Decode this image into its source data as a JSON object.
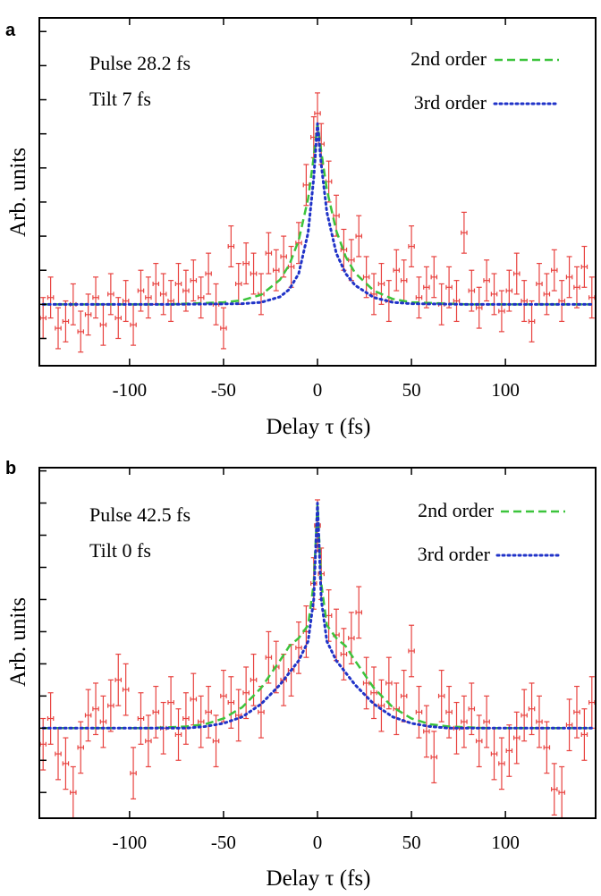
{
  "chart_data": [
    {
      "panel": "a",
      "type": "scatter",
      "annotation": [
        "Pulse 28.2 fs",
        "Tilt 7 fs"
      ],
      "xlabel": "Delay τ (fs)",
      "ylabel": "Arb. units",
      "xlim": [
        -148,
        148
      ],
      "ylim": [
        -0.9,
        4.2
      ],
      "xticks": [
        -100,
        -50,
        0,
        50,
        100
      ],
      "yticks": [
        -0.5,
        0,
        0.5,
        1,
        1.5,
        2,
        2.5,
        3,
        3.5,
        4
      ],
      "grid": false,
      "legend_position": "top-right",
      "colors": {
        "data": "#e8423f",
        "second_order": "#3cc43c",
        "third_order": "#2033c8"
      },
      "series": [
        {
          "name": "data",
          "style": "points-with-xy-errorbars",
          "x": [
            -146,
            -142,
            -138,
            -134,
            -130,
            -126,
            -122,
            -118,
            -114,
            -110,
            -106,
            -102,
            -98,
            -94,
            -90,
            -86,
            -82,
            -78,
            -74,
            -70,
            -66,
            -62,
            -58,
            -54,
            -50,
            -46,
            -42,
            -38,
            -34,
            -30,
            -26,
            -22,
            -18,
            -14,
            -10,
            -6,
            -2,
            0,
            2,
            6,
            10,
            14,
            18,
            22,
            26,
            30,
            34,
            38,
            42,
            46,
            50,
            54,
            58,
            62,
            66,
            70,
            74,
            78,
            82,
            86,
            90,
            94,
            98,
            102,
            106,
            110,
            114,
            118,
            122,
            126,
            130,
            134,
            138,
            142,
            146
          ],
          "y": [
            -0.2,
            0.1,
            -0.35,
            -0.25,
            0.0,
            -0.4,
            -0.15,
            0.1,
            -0.3,
            0.15,
            -0.2,
            0.05,
            -0.3,
            0.2,
            0.1,
            0.3,
            0.15,
            0.05,
            0.3,
            0.2,
            0.35,
            0.1,
            0.45,
            0.0,
            -0.35,
            0.85,
            0.3,
            0.6,
            0.45,
            0.15,
            0.75,
            0.5,
            0.7,
            0.55,
            0.9,
            1.75,
            2.45,
            2.8,
            2.35,
            1.8,
            1.3,
            0.8,
            0.65,
            1.0,
            0.4,
            0.15,
            0.3,
            0.05,
            0.5,
            0.35,
            0.85,
            0.1,
            0.25,
            0.4,
            0.0,
            0.25,
            0.05,
            1.05,
            0.2,
            -0.05,
            0.35,
            0.15,
            -0.1,
            0.2,
            0.45,
            0.05,
            -0.25,
            0.3,
            0.15,
            0.5,
            0.05,
            0.4,
            0.25,
            0.55,
            0.1
          ],
          "y_error": 0.3,
          "x_error": 1.5
        },
        {
          "name": "2nd order",
          "style": "dashed-line",
          "x": [
            -146,
            -80,
            -50,
            -40,
            -30,
            -20,
            -15,
            -10,
            -5,
            -2,
            0,
            2,
            5,
            10,
            15,
            20,
            30,
            40,
            50,
            80,
            146
          ],
          "y": [
            0.0,
            0.0,
            0.03,
            0.06,
            0.14,
            0.36,
            0.58,
            0.94,
            1.55,
            2.16,
            2.65,
            2.24,
            1.68,
            1.08,
            0.7,
            0.46,
            0.2,
            0.08,
            0.03,
            0.0,
            0.0
          ]
        },
        {
          "name": "3rd order",
          "style": "dotted-line",
          "x": [
            -146,
            -80,
            -40,
            -30,
            -20,
            -15,
            -10,
            -5,
            -2,
            0,
            2,
            5,
            10,
            15,
            20,
            30,
            40,
            50,
            80,
            146
          ],
          "y": [
            0.0,
            0.0,
            0.01,
            0.03,
            0.11,
            0.22,
            0.45,
            1.05,
            1.85,
            2.65,
            2.05,
            1.35,
            0.75,
            0.45,
            0.28,
            0.1,
            0.03,
            0.01,
            0.0,
            0.0
          ]
        }
      ]
    },
    {
      "panel": "b",
      "type": "scatter",
      "annotation": [
        "Pulse 42.5 fs",
        "Tilt 0 fs"
      ],
      "xlabel": "Delay τ (fs)",
      "ylabel": "Arb. units",
      "xlim": [
        -148,
        148
      ],
      "ylim": [
        -2.8,
        8.1
      ],
      "xticks": [
        -100,
        -50,
        0,
        50,
        100
      ],
      "yticks": [
        -2,
        -1,
        0,
        1,
        2,
        3,
        4,
        5,
        6,
        7,
        8
      ],
      "grid": false,
      "legend_position": "top-right",
      "colors": {
        "data": "#e8423f",
        "second_order": "#3cc43c",
        "third_order": "#2033c8"
      },
      "series": [
        {
          "name": "data",
          "style": "points-with-xy-errorbars",
          "x": [
            -146,
            -142,
            -138,
            -134,
            -130,
            -126,
            -122,
            -118,
            -114,
            -110,
            -106,
            -102,
            -98,
            -94,
            -90,
            -86,
            -82,
            -78,
            -74,
            -70,
            -66,
            -62,
            -58,
            -54,
            -50,
            -46,
            -42,
            -38,
            -34,
            -30,
            -26,
            -22,
            -18,
            -14,
            -10,
            -6,
            -2,
            0,
            2,
            6,
            10,
            14,
            18,
            22,
            26,
            30,
            34,
            38,
            42,
            46,
            50,
            54,
            58,
            62,
            66,
            70,
            74,
            78,
            82,
            86,
            90,
            94,
            98,
            102,
            106,
            110,
            114,
            118,
            122,
            126,
            130,
            134,
            138,
            142,
            146
          ],
          "y": [
            -0.5,
            0.3,
            -0.8,
            -1.1,
            -2.0,
            -0.6,
            0.4,
            0.6,
            0.2,
            0.7,
            1.5,
            1.2,
            -1.4,
            0.3,
            -0.4,
            0.5,
            0.0,
            0.8,
            -0.2,
            0.3,
            0.9,
            0.2,
            0.5,
            -0.4,
            1.0,
            0.8,
            0.4,
            1.1,
            1.5,
            0.5,
            2.2,
            1.9,
            1.5,
            1.8,
            2.5,
            3.0,
            4.5,
            6.3,
            4.8,
            3.5,
            2.9,
            2.3,
            2.8,
            3.6,
            1.4,
            1.1,
            0.7,
            1.4,
            0.6,
            1.0,
            2.4,
            0.5,
            -0.1,
            -0.9,
            1.0,
            0.5,
            0.0,
            0.2,
            0.6,
            -0.4,
            0.2,
            -0.8,
            -1.1,
            -0.7,
            -0.3,
            0.4,
            0.6,
            0.2,
            -0.6,
            -1.9,
            -2.0,
            0.1,
            0.5,
            -0.2,
            0.8
          ],
          "y_error": 0.8,
          "x_error": 1.5
        },
        {
          "name": "2nd order",
          "style": "dashed-line",
          "x": [
            -146,
            -90,
            -70,
            -60,
            -50,
            -40,
            -30,
            -20,
            -15,
            -10,
            -5,
            -2,
            0,
            2,
            5,
            10,
            15,
            20,
            30,
            40,
            50,
            60,
            70,
            90,
            146
          ],
          "y": [
            0.0,
            0.0,
            0.05,
            0.12,
            0.3,
            0.65,
            1.25,
            2.1,
            2.55,
            2.8,
            3.2,
            4.5,
            7.0,
            4.5,
            3.2,
            2.8,
            2.55,
            2.1,
            1.25,
            0.65,
            0.3,
            0.12,
            0.05,
            0.0,
            0.0
          ]
        },
        {
          "name": "3rd order",
          "style": "dotted-line",
          "x": [
            -146,
            -70,
            -60,
            -50,
            -40,
            -30,
            -20,
            -10,
            -5,
            -2,
            0,
            2,
            5,
            10,
            20,
            30,
            40,
            50,
            60,
            70,
            146
          ],
          "y": [
            0.0,
            0.0,
            0.05,
            0.15,
            0.35,
            0.75,
            1.35,
            2.1,
            2.7,
            4.0,
            7.0,
            4.0,
            2.7,
            2.1,
            1.35,
            0.75,
            0.35,
            0.15,
            0.05,
            0.0,
            0.0
          ]
        }
      ]
    }
  ]
}
